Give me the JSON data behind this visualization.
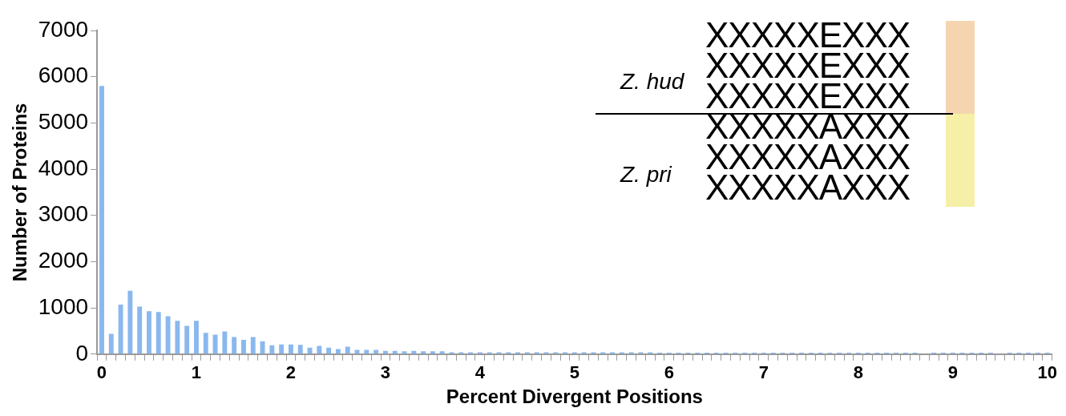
{
  "chart_data": {
    "type": "bar",
    "xlabel": "Percent Divergent Positions",
    "ylabel": "Number of Proteins",
    "categories": [
      "0",
      null,
      null,
      null,
      null,
      null,
      null,
      null,
      null,
      null,
      "1",
      null,
      null,
      null,
      null,
      null,
      null,
      null,
      null,
      null,
      "2",
      null,
      null,
      null,
      null,
      null,
      null,
      null,
      null,
      null,
      "3",
      null,
      null,
      null,
      null,
      null,
      null,
      null,
      null,
      null,
      "4",
      null,
      null,
      null,
      null,
      null,
      null,
      null,
      null,
      null,
      "5",
      null,
      null,
      null,
      null,
      null,
      null,
      null,
      null,
      null,
      "6",
      null,
      null,
      null,
      null,
      null,
      null,
      null,
      null,
      null,
      "7",
      null,
      null,
      null,
      null,
      null,
      null,
      null,
      null,
      null,
      "8",
      null,
      null,
      null,
      null,
      null,
      null,
      null,
      null,
      null,
      "9",
      null,
      null,
      null,
      null,
      null,
      null,
      null,
      null,
      null,
      "10"
    ],
    "values": [
      5800,
      440,
      1070,
      1370,
      1030,
      930,
      910,
      820,
      720,
      610,
      720,
      460,
      420,
      490,
      370,
      310,
      370,
      280,
      190,
      210,
      210,
      200,
      140,
      180,
      140,
      110,
      160,
      90,
      90,
      90,
      70,
      70,
      60,
      70,
      60,
      60,
      60,
      40,
      40,
      40,
      40,
      40,
      40,
      40,
      40,
      40,
      40,
      40,
      40,
      40,
      40,
      40,
      40,
      40,
      40,
      40,
      40,
      40,
      40,
      30,
      30,
      30,
      30,
      30,
      30,
      30,
      30,
      30,
      30,
      30,
      30,
      30,
      30,
      30,
      30,
      30,
      30,
      30,
      30,
      30,
      30,
      30,
      30,
      30,
      30,
      30,
      30,
      0,
      30,
      30,
      30,
      30,
      30,
      30,
      30,
      0,
      30,
      30,
      30,
      30,
      30
    ],
    "color": "#8ab8ee",
    "ylim": [
      0,
      7000
    ],
    "yticks": [
      0,
      1000,
      2000,
      3000,
      4000,
      5000,
      6000,
      7000
    ],
    "annotations": [
      "Z. hud",
      "Z. pri",
      "XXXXXEXXX",
      "XXXXXEXXX",
      "XXXXXEXXX",
      "XXXXXAXXX",
      "XXXXXAXXX",
      "XXXXXAXXX"
    ]
  }
}
